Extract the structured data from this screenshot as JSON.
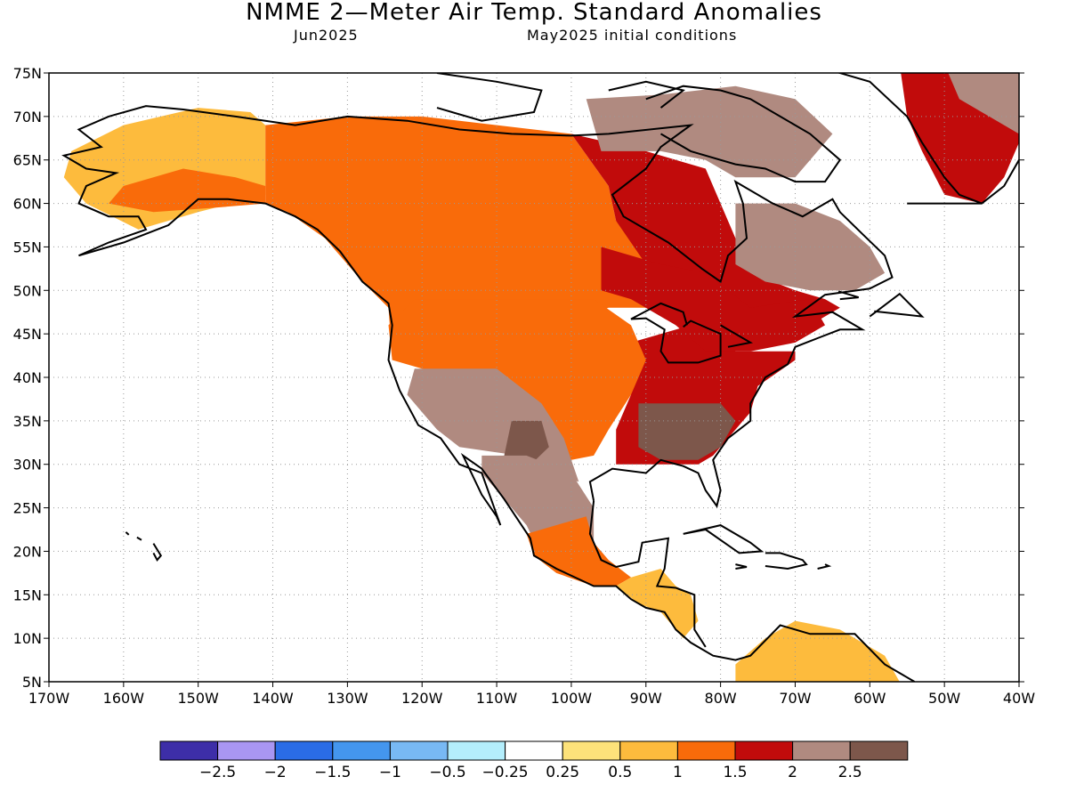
{
  "title": "NMME 2—Meter Air Temp. Standard Anomalies",
  "subtitle_left": "Jun2025",
  "subtitle_right": "May2025 initial conditions",
  "map": {
    "lat_labels": [
      "75N",
      "70N",
      "65N",
      "60N",
      "55N",
      "50N",
      "45N",
      "40N",
      "35N",
      "30N",
      "25N",
      "20N",
      "15N",
      "10N",
      "5N"
    ],
    "lon_labels": [
      "170W",
      "160W",
      "150W",
      "140W",
      "130W",
      "120W",
      "110W",
      "100W",
      "90W",
      "80W",
      "70W",
      "60W",
      "50W",
      "40W"
    ],
    "lat_range": [
      5,
      75
    ],
    "lon_range": [
      -170,
      -40
    ],
    "grid": "dotted"
  },
  "colorbar": {
    "colors": [
      "#3d2ea8",
      "#a996f2",
      "#2a6ce6",
      "#4496ee",
      "#78b9f4",
      "#b4eefc",
      "#ffffff",
      "#fde27a",
      "#fdbb3d",
      "#f96b0a",
      "#c10b0b",
      "#b08a80",
      "#7d574b"
    ],
    "labels": [
      "−2.5",
      "−2",
      "−1.5",
      "−1",
      "−0.5",
      "−0.25",
      "0.25",
      "0.5",
      "1",
      "1.5",
      "2",
      "2.5"
    ]
  },
  "regions": [
    {
      "name": "alaska-west",
      "color": "#fdbb3d"
    },
    {
      "name": "alaska-interior",
      "color": "#f96b0a"
    },
    {
      "name": "western-canada",
      "color": "#f96b0a"
    },
    {
      "name": "hudson-east",
      "color": "#c10b0b"
    },
    {
      "name": "nunavut",
      "color": "#b08a80"
    },
    {
      "name": "greenland",
      "color": "#c10b0b"
    },
    {
      "name": "greenland-north",
      "color": "#b08a80"
    },
    {
      "name": "eastern-us",
      "color": "#c10b0b"
    },
    {
      "name": "southeast-us",
      "color": "#7d574b"
    },
    {
      "name": "central-plains",
      "color": "#f96b0a"
    },
    {
      "name": "southwest-us",
      "color": "#b08a80"
    },
    {
      "name": "new-mexico",
      "color": "#7d574b"
    },
    {
      "name": "mexico",
      "color": "#b08a80"
    },
    {
      "name": "mexico-coast",
      "color": "#f96b0a"
    },
    {
      "name": "central-america",
      "color": "#fdbb3d"
    },
    {
      "name": "south-america",
      "color": "#fdbb3d"
    },
    {
      "name": "quebec",
      "color": "#b08a80"
    },
    {
      "name": "ontario-band",
      "color": "#c10b0b"
    }
  ]
}
